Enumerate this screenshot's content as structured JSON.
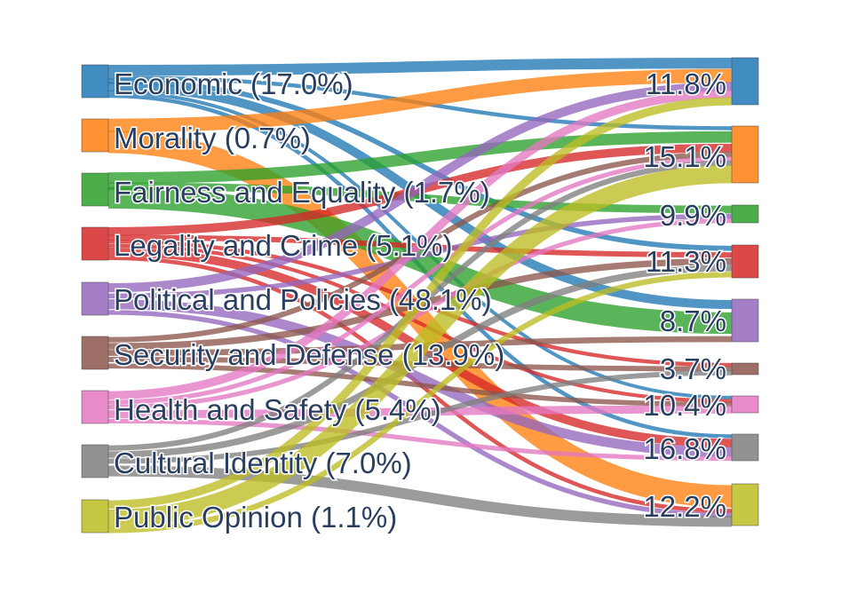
{
  "chart_data": {
    "type": "sankey",
    "title": "",
    "source_nodes": [
      {
        "name": "Economic",
        "pct_label": "17.0%",
        "color": "#1f77b4"
      },
      {
        "name": "Morality",
        "pct_label": "0.7%",
        "color": "#ff7f0e"
      },
      {
        "name": "Fairness and Equality",
        "pct_label": "1.7%",
        "color": "#2ca02c"
      },
      {
        "name": "Legality and Crime",
        "pct_label": "5.1%",
        "color": "#d62728"
      },
      {
        "name": "Political and Policies",
        "pct_label": "48.1%",
        "color": "#9467bd"
      },
      {
        "name": "Security and Defense",
        "pct_label": "13.9%",
        "color": "#8c564b"
      },
      {
        "name": "Health and Safety",
        "pct_label": "5.4%",
        "color": "#e377c2"
      },
      {
        "name": "Cultural Identity",
        "pct_label": "7.0%",
        "color": "#7f7f7f"
      },
      {
        "name": "Public Opinion",
        "pct_label": "1.1%",
        "color": "#bcbd22"
      }
    ],
    "target_nodes": [
      {
        "pct_label": "11.8%",
        "color": "#1f77b4"
      },
      {
        "pct_label": "15.1%",
        "color": "#ff7f0e"
      },
      {
        "pct_label": "9.9%",
        "color": "#2ca02c"
      },
      {
        "pct_label": "11.3%",
        "color": "#d62728"
      },
      {
        "pct_label": "8.7%",
        "color": "#9467bd"
      },
      {
        "pct_label": "3.7%",
        "color": "#8c564b"
      },
      {
        "pct_label": "10.4%",
        "color": "#e377c2"
      },
      {
        "pct_label": "16.8%",
        "color": "#7f7f7f"
      },
      {
        "pct_label": "12.2%",
        "color": "#bcbd22"
      }
    ],
    "links": [
      {
        "source": 0,
        "target": 0,
        "value": 3
      },
      {
        "source": 0,
        "target": 1,
        "value": 1
      },
      {
        "source": 0,
        "target": 3,
        "value": 1
      },
      {
        "source": 0,
        "target": 4,
        "value": 2
      },
      {
        "source": 0,
        "target": 6,
        "value": 1
      },
      {
        "source": 0,
        "target": 7,
        "value": 1
      },
      {
        "source": 1,
        "target": 0,
        "value": 4
      },
      {
        "source": 1,
        "target": 8,
        "value": 6
      },
      {
        "source": 2,
        "target": 1,
        "value": 3
      },
      {
        "source": 2,
        "target": 2,
        "value": 2
      },
      {
        "source": 2,
        "target": 4,
        "value": 5
      },
      {
        "source": 3,
        "target": 1,
        "value": 2
      },
      {
        "source": 3,
        "target": 3,
        "value": 1
      },
      {
        "source": 3,
        "target": 5,
        "value": 1
      },
      {
        "source": 3,
        "target": 6,
        "value": 1
      },
      {
        "source": 3,
        "target": 7,
        "value": 2
      },
      {
        "source": 3,
        "target": 8,
        "value": 1
      },
      {
        "source": 4,
        "target": 0,
        "value": 2
      },
      {
        "source": 4,
        "target": 2,
        "value": 1
      },
      {
        "source": 4,
        "target": 7,
        "value": 2
      },
      {
        "source": 4,
        "target": 8,
        "value": 1
      },
      {
        "source": 5,
        "target": 1,
        "value": 1
      },
      {
        "source": 5,
        "target": 3,
        "value": 1
      },
      {
        "source": 5,
        "target": 4,
        "value": 1
      },
      {
        "source": 5,
        "target": 5,
        "value": 1
      },
      {
        "source": 5,
        "target": 6,
        "value": 1
      },
      {
        "source": 6,
        "target": 0,
        "value": 2
      },
      {
        "source": 6,
        "target": 1,
        "value": 1
      },
      {
        "source": 6,
        "target": 2,
        "value": 1
      },
      {
        "source": 6,
        "target": 6,
        "value": 2
      },
      {
        "source": 6,
        "target": 7,
        "value": 1
      },
      {
        "source": 7,
        "target": 1,
        "value": 1
      },
      {
        "source": 7,
        "target": 3,
        "value": 1
      },
      {
        "source": 7,
        "target": 5,
        "value": 1
      },
      {
        "source": 7,
        "target": 8,
        "value": 2
      },
      {
        "source": 8,
        "target": 0,
        "value": 2
      },
      {
        "source": 8,
        "target": 1,
        "value": 4
      },
      {
        "source": 8,
        "target": 3,
        "value": 1
      }
    ]
  }
}
